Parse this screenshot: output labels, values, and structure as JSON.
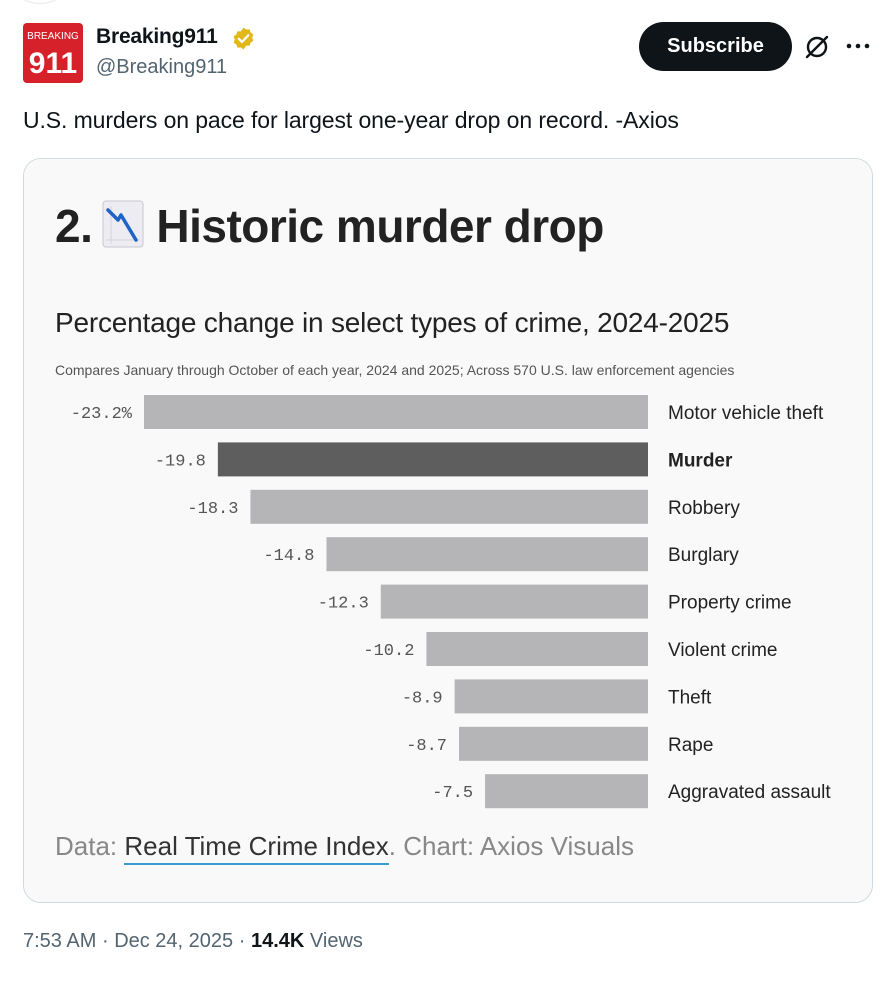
{
  "author": {
    "name": "Breaking911",
    "handle": "@Breaking911",
    "avatar_text_top": "BREAKING",
    "avatar_text_bottom": "911",
    "verified": true
  },
  "actions": {
    "subscribe_label": "Subscribe",
    "grok_icon": "grok-icon",
    "more_icon": "more-icon"
  },
  "tweet": {
    "text": "U.S. murders on pace for largest one-year drop on record. -Axios"
  },
  "media": {
    "headline_number": "2.",
    "headline_icon": "chart-decreasing-icon",
    "headline_text": "Historic murder drop",
    "source_prefix": "Data: ",
    "source_link": "Real Time Crime Index",
    "source_suffix": ". Chart: Axios Visuals"
  },
  "chart_data": {
    "type": "bar",
    "orientation": "horizontal",
    "title": "Percentage change in select types of crime, 2024-2025",
    "subtitle": "Compares January through October of each year, 2024 and 2025; Across 570 U.S. law enforcement agencies",
    "categories": [
      "Motor vehicle theft",
      "Murder",
      "Robbery",
      "Burglary",
      "Property crime",
      "Violent crime",
      "Theft",
      "Rape",
      "Aggravated assault"
    ],
    "values": [
      -23.2,
      -19.8,
      -18.3,
      -14.8,
      -12.3,
      -10.2,
      -8.9,
      -8.7,
      -7.5
    ],
    "value_labels": [
      "-23.2%",
      "-19.8",
      "-18.3",
      "-14.8",
      "-12.3",
      "-10.2",
      "-8.9",
      "-8.7",
      "-7.5"
    ],
    "highlight": "Murder",
    "colors": {
      "bar": "#b5b5b7",
      "highlight": "#5e5e5e"
    },
    "xlim": [
      -23.2,
      0
    ]
  },
  "meta": {
    "time": "7:53 AM",
    "separator": "·",
    "date": "Dec 24, 2025",
    "views_count": "14.4K",
    "views_label": "Views"
  }
}
